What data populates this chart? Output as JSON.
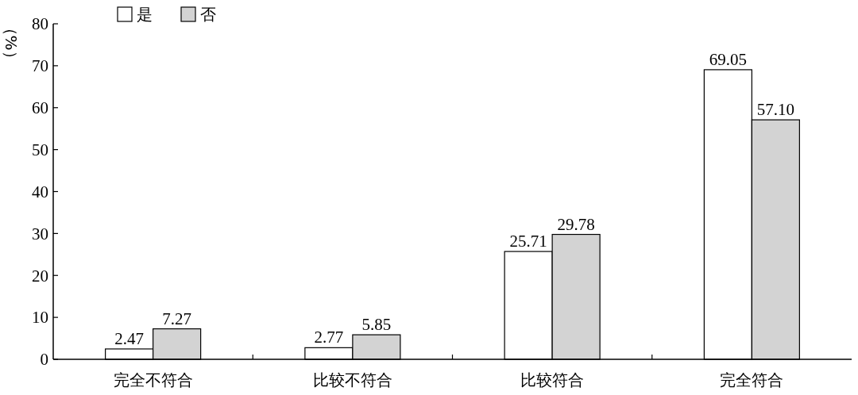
{
  "chart_data": {
    "type": "bar",
    "ylabel": "（%）",
    "categories": [
      "完全不符合",
      "比较不符合",
      "比较符合",
      "完全符合"
    ],
    "series": [
      {
        "name": "是",
        "color": "#ffffff",
        "values": [
          2.47,
          2.77,
          25.71,
          69.05
        ]
      },
      {
        "name": "否",
        "color": "#d3d3d3",
        "values": [
          7.27,
          5.85,
          29.78,
          57.1
        ]
      }
    ],
    "value_labels": [
      [
        "2.47",
        "2.77",
        "25.71",
        "69.05"
      ],
      [
        "7.27",
        "5.85",
        "29.78",
        "57.10"
      ]
    ],
    "ylim": [
      0,
      80
    ],
    "yticks": [
      0,
      10,
      20,
      30,
      40,
      50,
      60,
      70,
      80
    ],
    "legend": "top left",
    "grid": false
  }
}
